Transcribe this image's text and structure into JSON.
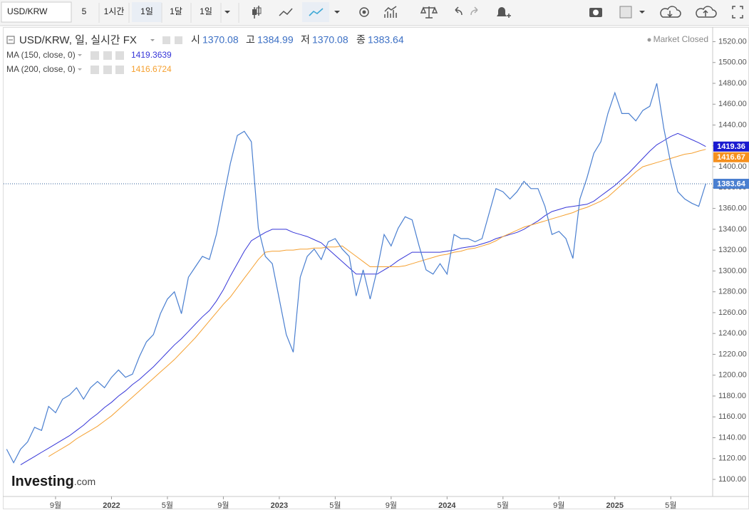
{
  "toolbar": {
    "symbol": "USD/KRW",
    "buttons": [
      "5",
      "1시간",
      "1일",
      "1달",
      "1일"
    ],
    "active": 2
  },
  "chart_data": {
    "type": "line",
    "title": "USD/KRW, 일, 실시간 FX",
    "ohlc": [
      {
        "label": "시",
        "value": 1370.08
      },
      {
        "label": "고",
        "value": 1384.99
      },
      {
        "label": "저",
        "value": 1370.08
      },
      {
        "label": "종",
        "value": 1383.64
      }
    ],
    "status": "Market Closed",
    "logo": {
      "main": "Investing",
      "suffix": ".com"
    },
    "categories": [
      null,
      null,
      null,
      null,
      null,
      null,
      null,
      "9월",
      null,
      null,
      null,
      null,
      null,
      null,
      null,
      "2022",
      null,
      null,
      null,
      null,
      null,
      null,
      null,
      "5월",
      null,
      null,
      null,
      null,
      null,
      null,
      null,
      "9월",
      null,
      null,
      null,
      null,
      null,
      null,
      null,
      "2023",
      null,
      null,
      null,
      null,
      null,
      null,
      null,
      "5월",
      null,
      null,
      null,
      null,
      null,
      null,
      null,
      "9월",
      null,
      null,
      null,
      null,
      null,
      null,
      null,
      "2024",
      null,
      null,
      null,
      null,
      null,
      null,
      null,
      "5월",
      null,
      null,
      null,
      null,
      null,
      null,
      null,
      "9월",
      null,
      null,
      null,
      null,
      null,
      null,
      null,
      "2025",
      null,
      null,
      null,
      null,
      null,
      null,
      null,
      "5월",
      null,
      null,
      null,
      null,
      null
    ],
    "series": [
      {
        "name": "USD/KRW",
        "color": "#4a7fd0",
        "values": [
          1129,
          1116,
          1129,
          1136,
          1150,
          1147,
          1170,
          1164,
          1177,
          1181,
          1188,
          1177,
          1188,
          1194,
          1188,
          1198,
          1205,
          1198,
          1201,
          1218,
          1232,
          1239,
          1259,
          1273,
          1280,
          1259,
          1294,
          1304,
          1314,
          1311,
          1335,
          1369,
          1403,
          1430,
          1434,
          1424,
          1341,
          1314,
          1307,
          1273,
          1239,
          1222,
          1294,
          1314,
          1321,
          1311,
          1328,
          1331,
          1321,
          1314,
          1276,
          1301,
          1273,
          1301,
          1335,
          1324,
          1341,
          1352,
          1349,
          1324,
          1301,
          1297,
          1307,
          1297,
          1335,
          1331,
          1331,
          1328,
          1331,
          1355,
          1379,
          1376,
          1369,
          1376,
          1386,
          1379,
          1379,
          1362,
          1335,
          1338,
          1331,
          1312,
          1369,
          1389,
          1413,
          1424,
          1451,
          1471,
          1451,
          1451,
          1444,
          1454,
          1458,
          1480,
          1437,
          1403,
          1376,
          1369,
          1365,
          1362,
          1383.64
        ]
      },
      {
        "name": "MA (150, close, 0)",
        "color": "#3535d8",
        "badge_color": "#1a1ad0",
        "badge": 1419.36,
        "values": [
          null,
          null,
          1114,
          1118,
          1122,
          1126,
          1130,
          1134,
          1138,
          1142,
          1147,
          1152,
          1158,
          1163,
          1169,
          1174,
          1180,
          1185,
          1191,
          1196,
          1202,
          1208,
          1215,
          1222,
          1229,
          1235,
          1242,
          1249,
          1256,
          1262,
          1271,
          1282,
          1295,
          1307,
          1319,
          1329,
          1333,
          1337,
          1340,
          1340,
          1340,
          1337,
          1335,
          1333,
          1330,
          1327,
          1321,
          1315,
          1309,
          1303,
          1297,
          1297,
          1297,
          1297,
          1301,
          1305,
          1310,
          1314,
          1318,
          1318,
          1318,
          1318,
          1318,
          1319,
          1320,
          1322,
          1323,
          1324,
          1326,
          1328,
          1331,
          1333,
          1335,
          1337,
          1340,
          1344,
          1348,
          1353,
          1357,
          1359,
          1361,
          1362,
          1363,
          1364,
          1367,
          1372,
          1377,
          1382,
          1388,
          1394,
          1401,
          1408,
          1415,
          1421,
          1425,
          1429,
          1432,
          1429,
          1426,
          1423,
          1419.3639
        ]
      },
      {
        "name": "MA (200, close, 0)",
        "color": "#f5a030",
        "badge_color": "#f5901e",
        "badge": 1416.67,
        "values": [
          null,
          null,
          null,
          null,
          null,
          null,
          1122,
          1126,
          1130,
          1134,
          1139,
          1143,
          1147,
          1151,
          1156,
          1161,
          1167,
          1173,
          1179,
          1185,
          1191,
          1197,
          1203,
          1209,
          1215,
          1222,
          1229,
          1236,
          1244,
          1252,
          1260,
          1268,
          1275,
          1284,
          1293,
          1302,
          1311,
          1318,
          1319,
          1319,
          1320,
          1320,
          1321,
          1321,
          1322,
          1322,
          1323,
          1323,
          1324,
          1319,
          1314,
          1309,
          1304,
          1304,
          1304,
          1304,
          1304,
          1305,
          1307,
          1309,
          1311,
          1313,
          1315,
          1316,
          1318,
          1319,
          1321,
          1322,
          1324,
          1326,
          1329,
          1333,
          1336,
          1339,
          1342,
          1344,
          1346,
          1348,
          1350,
          1352,
          1354,
          1356,
          1359,
          1361,
          1364,
          1367,
          1371,
          1377,
          1383,
          1389,
          1395,
          1400,
          1402,
          1404,
          1406,
          1408,
          1410,
          1412,
          1413,
          1415,
          1416.6724
        ]
      }
    ],
    "ylim": [
      1085,
      1534
    ],
    "yticks": [
      {
        "value": 1100,
        "label": "1100.00"
      },
      {
        "value": 1120,
        "label": "1120.00"
      },
      {
        "value": 1140,
        "label": "1140.00"
      },
      {
        "value": 1160,
        "label": "1160.00"
      },
      {
        "value": 1180,
        "label": "1180.00"
      },
      {
        "value": 1200,
        "label": "1200.00"
      },
      {
        "value": 1220,
        "label": "1220.00"
      },
      {
        "value": 1240,
        "label": "1240.00"
      },
      {
        "value": 1260,
        "label": "1260.00"
      },
      {
        "value": 1280,
        "label": "1280.00"
      },
      {
        "value": 1300,
        "label": "1300.00"
      },
      {
        "value": 1320,
        "label": "1320.00"
      },
      {
        "value": 1340,
        "label": "1340.00"
      },
      {
        "value": 1360,
        "label": "1360.00"
      },
      {
        "value": 1380,
        "label": "1380.00"
      },
      {
        "value": 1400,
        "label": "1400.00"
      },
      {
        "value": 1420,
        "label": "1420.00"
      },
      {
        "value": 1440,
        "label": "1440.00"
      },
      {
        "value": 1460,
        "label": "1460.00"
      },
      {
        "value": 1480,
        "label": "1480.00"
      },
      {
        "value": 1500,
        "label": "1500.00"
      },
      {
        "value": 1520,
        "label": "1520.00"
      }
    ],
    "grid": false
  }
}
